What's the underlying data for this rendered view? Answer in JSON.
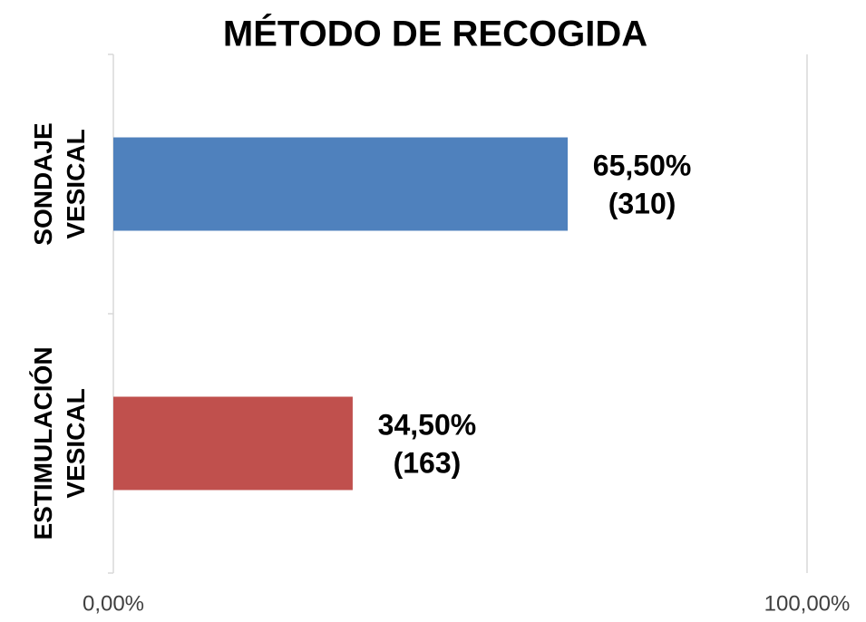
{
  "chart_data": {
    "type": "barh",
    "title": "MÉTODO DE RECOGIDA",
    "categories": [
      "SONDAJE VESICAL",
      "ESTIMULACIÓN VESICAL"
    ],
    "values": [
      65.5,
      34.5
    ],
    "value_labels": [
      "65,50%",
      "34,50%"
    ],
    "count_labels": [
      "(310)",
      "(163)"
    ],
    "colors": [
      "#4f81bd",
      "#c0504d"
    ],
    "xlim": [
      0,
      100
    ],
    "xticks": [
      {
        "value": 0,
        "label": "0,00%"
      },
      {
        "value": 100,
        "label": "100,00%"
      }
    ],
    "grid": true
  }
}
